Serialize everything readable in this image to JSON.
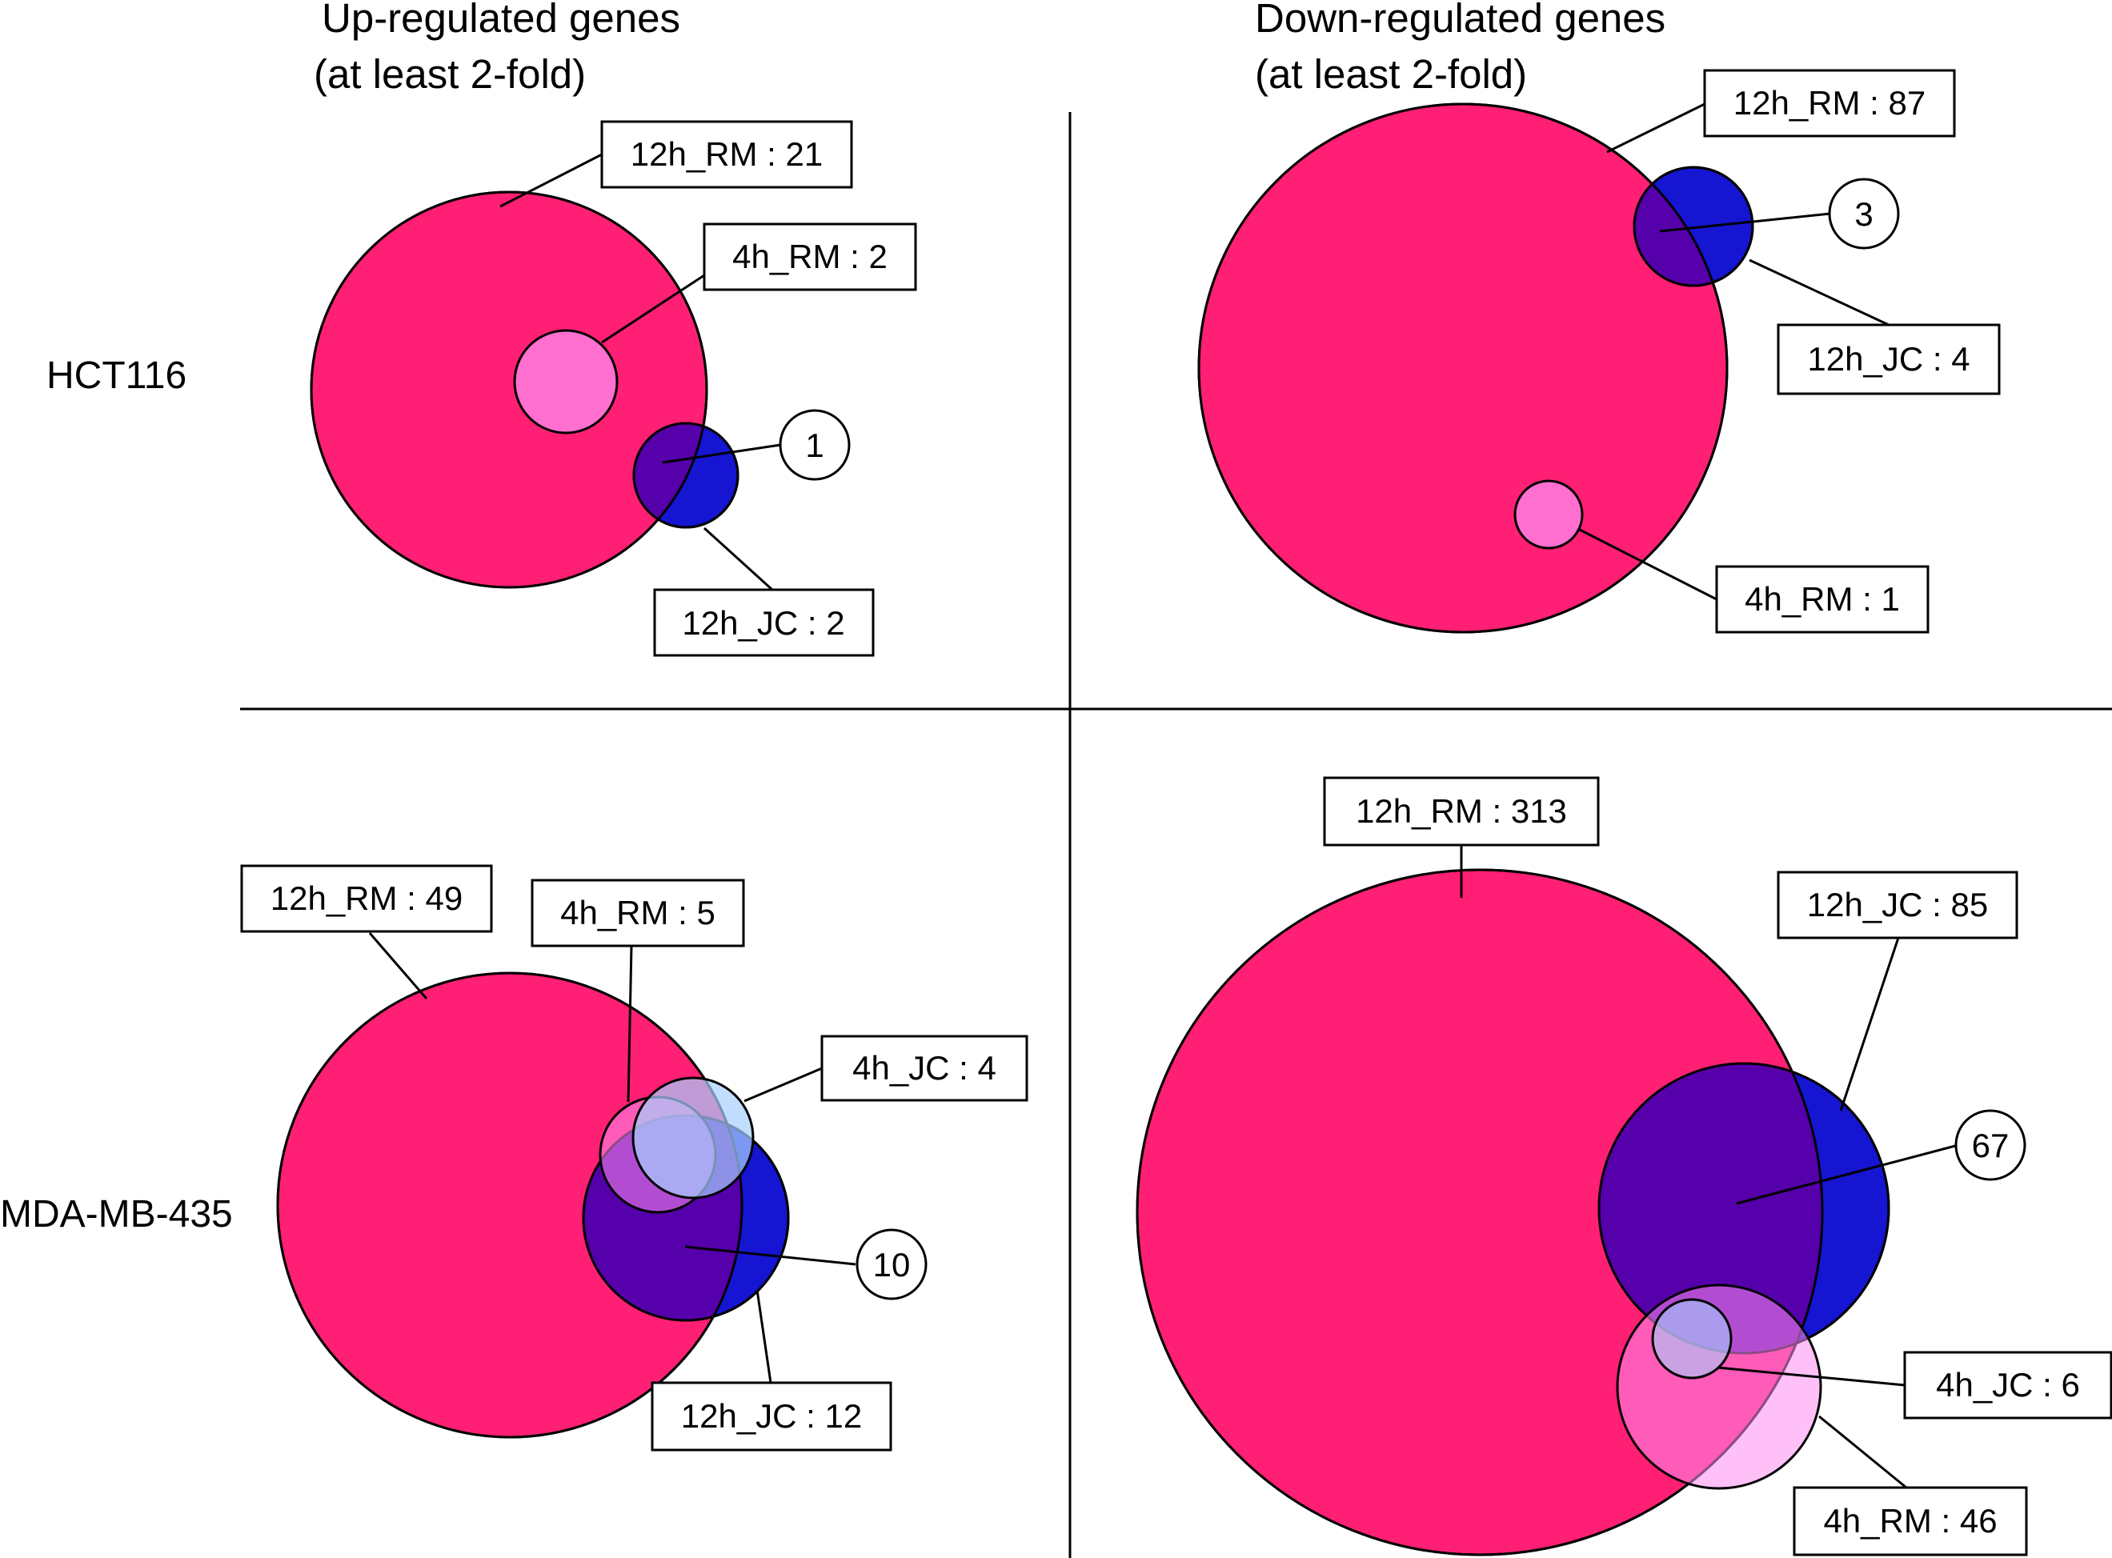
{
  "headers": {
    "up_line1": "Up-regulated genes",
    "up_line2": "(at least 2-fold)",
    "down_line1": "Down-regulated genes",
    "down_line2": "(at least 2-fold)"
  },
  "rows": {
    "hct116": "HCT116",
    "mda": "MDA-MB-435"
  },
  "colors": {
    "rm12": "#ff1f74",
    "rm4": "#ff6fd0",
    "rm4_large": "#ff8cf2",
    "jc12": "#1515d2",
    "jc4": "#a6d0ff",
    "overlap": "#5500aa"
  },
  "panels": {
    "hct_up": {
      "rm12": "12h_RM : 21",
      "rm4": "4h_RM : 2",
      "jc12": "12h_JC : 2",
      "overlap": "1"
    },
    "hct_down": {
      "rm12": "12h_RM : 87",
      "jc12": "12h_JC : 4",
      "rm4": "4h_RM : 1",
      "overlap": "3"
    },
    "mda_up": {
      "rm12": "12h_RM : 49",
      "rm4": "4h_RM : 5",
      "jc4": "4h_JC : 4",
      "jc12": "12h_JC : 12",
      "overlap": "10"
    },
    "mda_down": {
      "rm12": "12h_RM : 313",
      "jc12": "12h_JC : 85",
      "jc4": "4h_JC : 6",
      "rm4": "4h_RM : 46",
      "overlap": "67"
    }
  }
}
